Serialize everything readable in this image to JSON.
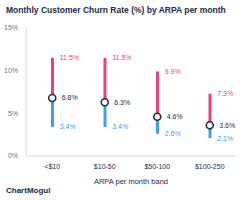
{
  "chart_data": {
    "type": "range",
    "title": "Monthly Customer Churn Rate (%) by ARPA per month",
    "x_label": "ARPA per month band",
    "annotation": "ChartMogul",
    "categories": [
      "<$10",
      "$10-50",
      "$50-100",
      "$100-250"
    ],
    "values": [
      6.8,
      6.3,
      4.6,
      3.6
    ],
    "value_labels": [
      "6.8%",
      "6.3%",
      "4.6%",
      "3.6%"
    ],
    "low": [
      3.4,
      3.4,
      2.6,
      2.1
    ],
    "low_labels": [
      "3.4%",
      "3.4%",
      "2.6%",
      "2.1%"
    ],
    "high": [
      11.5,
      11.5,
      9.9,
      7.3
    ],
    "high_labels": [
      "11.5%",
      "11.5%",
      "9.9%",
      "7.3%"
    ],
    "ylim": [
      0,
      15
    ],
    "yticks": [
      {
        "value": 0,
        "label": "0%"
      },
      {
        "value": 5,
        "label": "5%"
      },
      {
        "value": 10,
        "label": "10%"
      },
      {
        "value": 15,
        "label": "15%"
      }
    ],
    "grid": false,
    "data_labels": true
  }
}
